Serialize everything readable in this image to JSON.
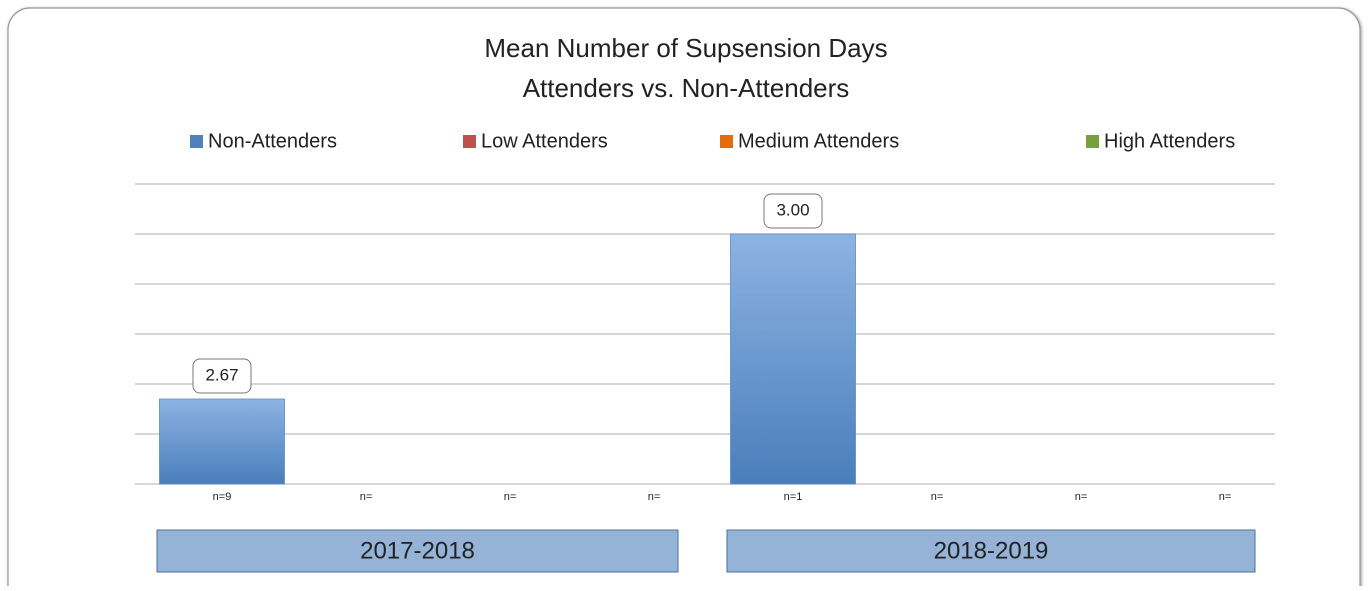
{
  "chart_data": {
    "type": "bar",
    "title_lines": [
      "Mean Number of Supsension Days",
      "Attenders vs. Non-Attenders"
    ],
    "groups": [
      "2017-2018",
      "2018-2019"
    ],
    "series": [
      {
        "name": "Non-Attenders",
        "color": "#4f81bd",
        "values": [
          2.67,
          3.0
        ],
        "value_labels": [
          "2.67",
          "3.00"
        ],
        "n_labels": [
          "n=9",
          "n=1"
        ]
      },
      {
        "name": "Low Attenders",
        "color": "#c0504d",
        "values": [
          null,
          null
        ],
        "n_labels": [
          "n=",
          "n="
        ]
      },
      {
        "name": "Medium Attenders",
        "color": "#e46c0a",
        "values": [
          null,
          null
        ],
        "n_labels": [
          "n=",
          "n="
        ]
      },
      {
        "name": "High Attenders",
        "color": "#77a03a",
        "values": [
          null,
          null
        ],
        "n_labels": [
          "n=",
          "n="
        ]
      }
    ],
    "ylim": [
      2.5,
      3.1
    ],
    "yticks": [
      2.5,
      2.6,
      2.7,
      2.8,
      2.9,
      3.0,
      3.1
    ],
    "grid": true,
    "show_ytick_labels": false,
    "legend": "top"
  }
}
